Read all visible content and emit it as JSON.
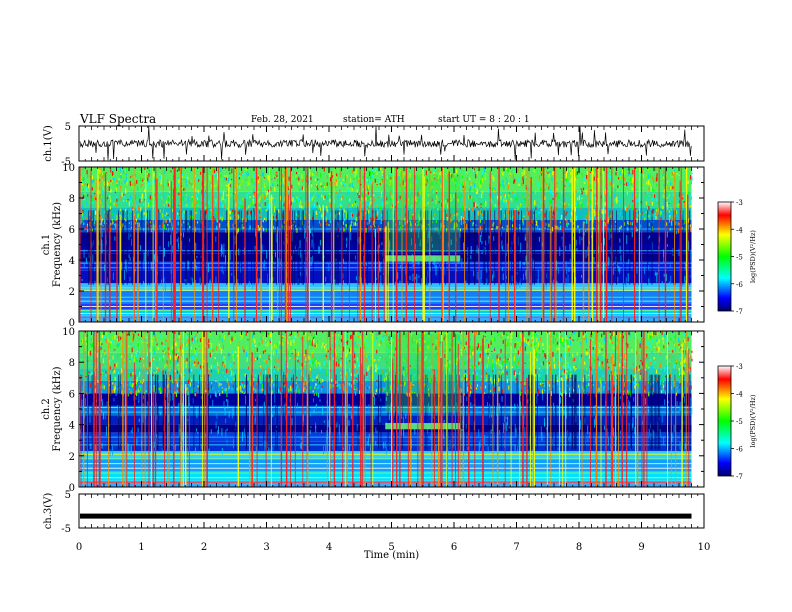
{
  "header": {
    "title": "VLF Spectra",
    "date": "Feb. 28, 2021",
    "station": "station= ATH",
    "start_ut": "start  UT  =   8 : 20 : 1"
  },
  "chart_data": [
    {
      "type": "line",
      "id": "ch1-waveform",
      "ylabel": "ch.1(V)",
      "ylim": [
        -5,
        5
      ],
      "y_ticks": [
        "5",
        "-5"
      ],
      "xlim": [
        0,
        10
      ],
      "data_end_min": 9.8
    },
    {
      "type": "heatmap",
      "id": "ch1-spectrogram",
      "ylabel": "ch.1\nFrequency (kHz)",
      "ylim": [
        0,
        10
      ],
      "y_ticks": [
        "0",
        "2",
        "4",
        "6",
        "8",
        "10"
      ],
      "xlim": [
        0,
        10
      ],
      "data_end_min": 9.8,
      "colorbar": {
        "label": "log(PSD)(V²/Hz)",
        "range": [
          -7,
          -3
        ],
        "ticks": [
          "-3",
          "-4",
          "-5",
          "-6",
          "-7"
        ]
      }
    },
    {
      "type": "heatmap",
      "id": "ch2-spectrogram",
      "ylabel": "ch.2\nFrequency (kHz)",
      "ylim": [
        0,
        10
      ],
      "y_ticks": [
        "0",
        "2",
        "4",
        "6",
        "8",
        "10"
      ],
      "xlim": [
        0,
        10
      ],
      "data_end_min": 9.8,
      "colorbar": {
        "label": "log(PSD)(V²/Hz)",
        "range": [
          -7,
          -3
        ],
        "ticks": [
          "-3",
          "-4",
          "-5",
          "-6",
          "-7"
        ]
      }
    },
    {
      "type": "line",
      "id": "ch3-waveform",
      "ylabel": "ch.3(V)",
      "ylim": [
        -5,
        5
      ],
      "y_ticks": [
        "5",
        "-5"
      ],
      "xlim": [
        0,
        10
      ],
      "data_end_min": 9.8,
      "level_v": -1.5
    }
  ],
  "x_axis": {
    "label": "Time (min)",
    "ticks": [
      "0",
      "1",
      "2",
      "3",
      "4",
      "5",
      "6",
      "7",
      "8",
      "9",
      "10"
    ]
  }
}
